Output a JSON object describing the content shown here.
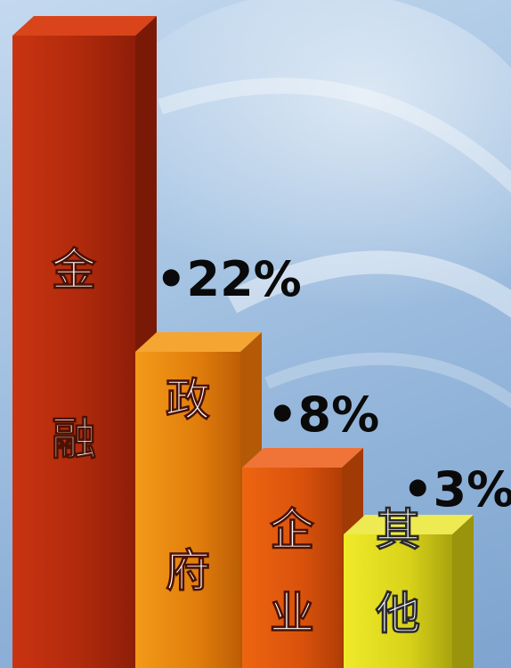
{
  "chart_data": {
    "type": "bar",
    "style": "3d",
    "grid": false,
    "bars": [
      {
        "label_chars": [
          "金",
          "融"
        ],
        "value_label": "",
        "color": "#c8300f"
      },
      {
        "label_chars": [
          "政",
          "府"
        ],
        "value_label": "•22%",
        "value": 22,
        "color": "#ee8f10"
      },
      {
        "label_chars": [
          "企",
          "业"
        ],
        "value_label": "•8%",
        "value": 8,
        "color": "#e4560e"
      },
      {
        "label_chars": [
          "其",
          "他"
        ],
        "value_label": "•3%",
        "value": 3,
        "color": "#dcd61c"
      }
    ]
  }
}
